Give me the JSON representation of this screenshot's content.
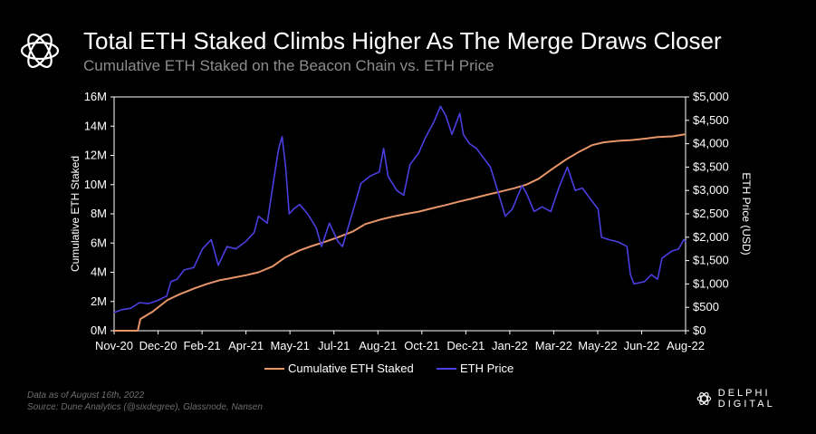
{
  "header": {
    "title": "Total ETH Staked Climbs Higher As The Merge Draws Closer",
    "subtitle": "Cumulative ETH Staked on the Beacon Chain vs. ETH Price",
    "logo_icon": "delphi-knot-logo"
  },
  "footer": {
    "data_date": "Data as of August 16th, 2022",
    "source": "Source: Dune Analytics (@sixdegree), Glassnode, Nansen",
    "brand": "DELPHI DIGITAL"
  },
  "colors": {
    "staked": "#e8956a",
    "price": "#4b3fe0",
    "background": "#000000",
    "text": "#ffffff",
    "muted": "#8c8c8c"
  },
  "chart_data": {
    "type": "line",
    "xlabel": "",
    "x_ticks": [
      "Nov-20",
      "Dec-20",
      "Feb-21",
      "Apr-21",
      "May-21",
      "Jul-21",
      "Aug-21",
      "Oct-21",
      "Dec-21",
      "Jan-22",
      "Mar-22",
      "May-22",
      "Jun-22",
      "Aug-22"
    ],
    "y_left": {
      "label": "Cumulative ETH Staked",
      "range": [
        0,
        16000000
      ],
      "ticks": [
        "0M",
        "2M",
        "4M",
        "6M",
        "8M",
        "10M",
        "12M",
        "14M",
        "16M"
      ]
    },
    "y_right": {
      "label": "ETH Price (USD)",
      "range": [
        0,
        5000
      ],
      "ticks": [
        "$0",
        "$500",
        "$1,000",
        "$1,500",
        "$2,000",
        "$2,500",
        "$3,000",
        "$3,500",
        "$4,000",
        "$4,500",
        "$5,000"
      ]
    },
    "grid": false,
    "legend": "bottom-center",
    "x_range": [
      "2020-11-01",
      "2022-08-16"
    ],
    "series": [
      {
        "name": "Cumulative ETH Staked",
        "axis": "left",
        "points": [
          [
            "2020-11-01",
            0
          ],
          [
            "2020-11-28",
            0
          ],
          [
            "2020-12-01",
            800000
          ],
          [
            "2020-12-15",
            1300000
          ],
          [
            "2021-01-01",
            2100000
          ],
          [
            "2021-01-15",
            2500000
          ],
          [
            "2021-02-01",
            2900000
          ],
          [
            "2021-02-15",
            3200000
          ],
          [
            "2021-03-01",
            3450000
          ],
          [
            "2021-03-15",
            3600000
          ],
          [
            "2021-04-01",
            3800000
          ],
          [
            "2021-04-15",
            4000000
          ],
          [
            "2021-05-01",
            4400000
          ],
          [
            "2021-05-15",
            5000000
          ],
          [
            "2021-06-01",
            5500000
          ],
          [
            "2021-06-15",
            5800000
          ],
          [
            "2021-07-01",
            6100000
          ],
          [
            "2021-07-15",
            6400000
          ],
          [
            "2021-08-01",
            6800000
          ],
          [
            "2021-08-15",
            7300000
          ],
          [
            "2021-09-01",
            7600000
          ],
          [
            "2021-09-15",
            7800000
          ],
          [
            "2021-10-01",
            8000000
          ],
          [
            "2021-10-15",
            8150000
          ],
          [
            "2021-11-01",
            8400000
          ],
          [
            "2021-11-15",
            8600000
          ],
          [
            "2021-12-01",
            8850000
          ],
          [
            "2021-12-15",
            9050000
          ],
          [
            "2022-01-01",
            9300000
          ],
          [
            "2022-01-15",
            9500000
          ],
          [
            "2022-02-01",
            9750000
          ],
          [
            "2022-02-15",
            10000000
          ],
          [
            "2022-03-01",
            10400000
          ],
          [
            "2022-03-15",
            11000000
          ],
          [
            "2022-04-01",
            11700000
          ],
          [
            "2022-04-15",
            12200000
          ],
          [
            "2022-05-01",
            12700000
          ],
          [
            "2022-05-15",
            12900000
          ],
          [
            "2022-06-01",
            13000000
          ],
          [
            "2022-06-15",
            13050000
          ],
          [
            "2022-07-01",
            13150000
          ],
          [
            "2022-07-15",
            13250000
          ],
          [
            "2022-08-01",
            13300000
          ],
          [
            "2022-08-16",
            13450000
          ]
        ]
      },
      {
        "name": "ETH Price",
        "axis": "right",
        "points": [
          [
            "2020-11-01",
            390
          ],
          [
            "2020-11-10",
            450
          ],
          [
            "2020-11-20",
            480
          ],
          [
            "2020-11-30",
            600
          ],
          [
            "2020-12-10",
            580
          ],
          [
            "2020-12-20",
            640
          ],
          [
            "2020-12-31",
            740
          ],
          [
            "2021-01-05",
            1050
          ],
          [
            "2021-01-12",
            1100
          ],
          [
            "2021-01-20",
            1300
          ],
          [
            "2021-01-31",
            1350
          ],
          [
            "2021-02-10",
            1750
          ],
          [
            "2021-02-20",
            1950
          ],
          [
            "2021-02-28",
            1400
          ],
          [
            "2021-03-10",
            1800
          ],
          [
            "2021-03-20",
            1750
          ],
          [
            "2021-03-31",
            1900
          ],
          [
            "2021-04-10",
            2100
          ],
          [
            "2021-04-15",
            2450
          ],
          [
            "2021-04-25",
            2300
          ],
          [
            "2021-05-03",
            3300
          ],
          [
            "2021-05-08",
            3900
          ],
          [
            "2021-05-12",
            4150
          ],
          [
            "2021-05-16",
            3500
          ],
          [
            "2021-05-20",
            2500
          ],
          [
            "2021-05-25",
            2600
          ],
          [
            "2021-06-01",
            2700
          ],
          [
            "2021-06-10",
            2500
          ],
          [
            "2021-06-20",
            2200
          ],
          [
            "2021-06-26",
            1800
          ],
          [
            "2021-07-05",
            2300
          ],
          [
            "2021-07-15",
            1900
          ],
          [
            "2021-07-20",
            1800
          ],
          [
            "2021-07-31",
            2500
          ],
          [
            "2021-08-10",
            3150
          ],
          [
            "2021-08-20",
            3300
          ],
          [
            "2021-08-31",
            3400
          ],
          [
            "2021-09-05",
            3900
          ],
          [
            "2021-09-10",
            3300
          ],
          [
            "2021-09-20",
            3000
          ],
          [
            "2021-09-28",
            2900
          ],
          [
            "2021-10-05",
            3550
          ],
          [
            "2021-10-15",
            3800
          ],
          [
            "2021-10-22",
            4100
          ],
          [
            "2021-11-01",
            4450
          ],
          [
            "2021-11-09",
            4800
          ],
          [
            "2021-11-15",
            4600
          ],
          [
            "2021-11-22",
            4200
          ],
          [
            "2021-12-01",
            4650
          ],
          [
            "2021-12-05",
            4200
          ],
          [
            "2021-12-12",
            4000
          ],
          [
            "2021-12-20",
            3900
          ],
          [
            "2021-12-28",
            3700
          ],
          [
            "2022-01-05",
            3500
          ],
          [
            "2022-01-10",
            3200
          ],
          [
            "2022-01-22",
            2450
          ],
          [
            "2022-01-30",
            2600
          ],
          [
            "2022-02-10",
            3100
          ],
          [
            "2022-02-15",
            2950
          ],
          [
            "2022-02-24",
            2550
          ],
          [
            "2022-03-05",
            2650
          ],
          [
            "2022-03-15",
            2550
          ],
          [
            "2022-03-25",
            3100
          ],
          [
            "2022-04-03",
            3500
          ],
          [
            "2022-04-12",
            3000
          ],
          [
            "2022-04-20",
            3050
          ],
          [
            "2022-04-30",
            2800
          ],
          [
            "2022-05-08",
            2600
          ],
          [
            "2022-05-12",
            2000
          ],
          [
            "2022-05-20",
            1950
          ],
          [
            "2022-05-31",
            1900
          ],
          [
            "2022-06-10",
            1800
          ],
          [
            "2022-06-14",
            1200
          ],
          [
            "2022-06-18",
            1000
          ],
          [
            "2022-06-30",
            1050
          ],
          [
            "2022-07-08",
            1200
          ],
          [
            "2022-07-15",
            1100
          ],
          [
            "2022-07-20",
            1550
          ],
          [
            "2022-07-31",
            1700
          ],
          [
            "2022-08-08",
            1750
          ],
          [
            "2022-08-14",
            1950
          ],
          [
            "2022-08-16",
            1900
          ]
        ]
      }
    ]
  }
}
